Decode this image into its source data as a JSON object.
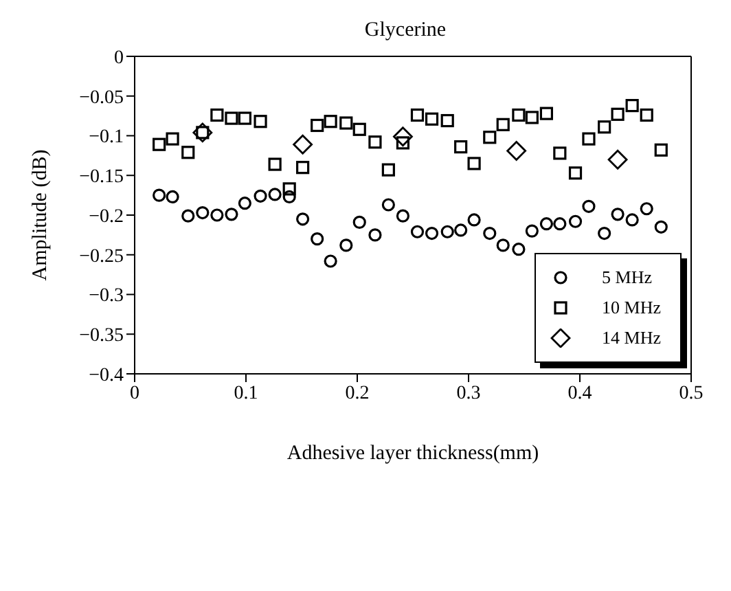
{
  "chart_data": {
    "type": "scatter",
    "title": "Glycerine",
    "xlabel": "Adhesive layer thickness(mm)",
    "ylabel": "Amplitude (dB)",
    "xlim": [
      0,
      0.5
    ],
    "xticks": [
      0,
      0.1,
      0.2,
      0.3,
      0.4,
      0.5
    ],
    "ylim": [
      -0.4,
      0
    ],
    "yticks": [
      0,
      -0.05,
      -0.1,
      -0.15,
      -0.2,
      -0.25,
      -0.3,
      -0.35,
      -0.4
    ],
    "x": [
      0.022,
      0.034,
      0.048,
      0.061,
      0.074,
      0.087,
      0.099,
      0.113,
      0.126,
      0.139,
      0.151,
      0.164,
      0.176,
      0.19,
      0.202,
      0.216,
      0.228,
      0.241,
      0.254,
      0.267,
      0.281,
      0.293,
      0.305,
      0.319,
      0.331,
      0.345,
      0.357,
      0.37,
      0.382,
      0.396,
      0.408,
      0.422,
      0.434,
      0.447,
      0.46,
      0.473
    ],
    "series": [
      {
        "name": "5 MHz",
        "color": "#000000",
        "marker": "circle",
        "values": [
          -0.175,
          -0.177,
          -0.201,
          -0.197,
          -0.2,
          -0.199,
          -0.185,
          -0.176,
          -0.174,
          -0.177,
          -0.205,
          -0.23,
          -0.258,
          -0.238,
          -0.209,
          -0.225,
          -0.187,
          -0.201,
          -0.221,
          -0.223,
          -0.221,
          -0.219,
          -0.206,
          -0.223,
          -0.238,
          -0.243,
          -0.22,
          -0.211,
          -0.211,
          -0.208,
          -0.189,
          -0.223,
          -0.199,
          -0.206,
          -0.192,
          -0.215
        ]
      },
      {
        "name": "10 MHz",
        "color": "#000000",
        "marker": "square",
        "values": [
          -0.111,
          -0.104,
          -0.121,
          -0.096,
          -0.074,
          -0.078,
          -0.078,
          -0.082,
          -0.136,
          -0.167,
          -0.14,
          -0.087,
          -0.082,
          -0.084,
          -0.092,
          -0.108,
          -0.143,
          -0.109,
          -0.074,
          -0.079,
          -0.081,
          -0.114,
          -0.135,
          -0.102,
          -0.086,
          -0.074,
          -0.077,
          -0.072,
          -0.122,
          -0.147,
          -0.104,
          -0.089,
          -0.073,
          -0.062,
          -0.074,
          -0.118
        ]
      },
      {
        "name": "14 MHz",
        "color": "#000000",
        "marker": "diamond",
        "x": [
          0.061,
          0.151,
          0.241,
          0.343,
          0.434
        ],
        "values": [
          -0.096,
          -0.111,
          -0.101,
          -0.119,
          -0.13
        ]
      }
    ],
    "legend": "bottom right",
    "grid": false
  }
}
